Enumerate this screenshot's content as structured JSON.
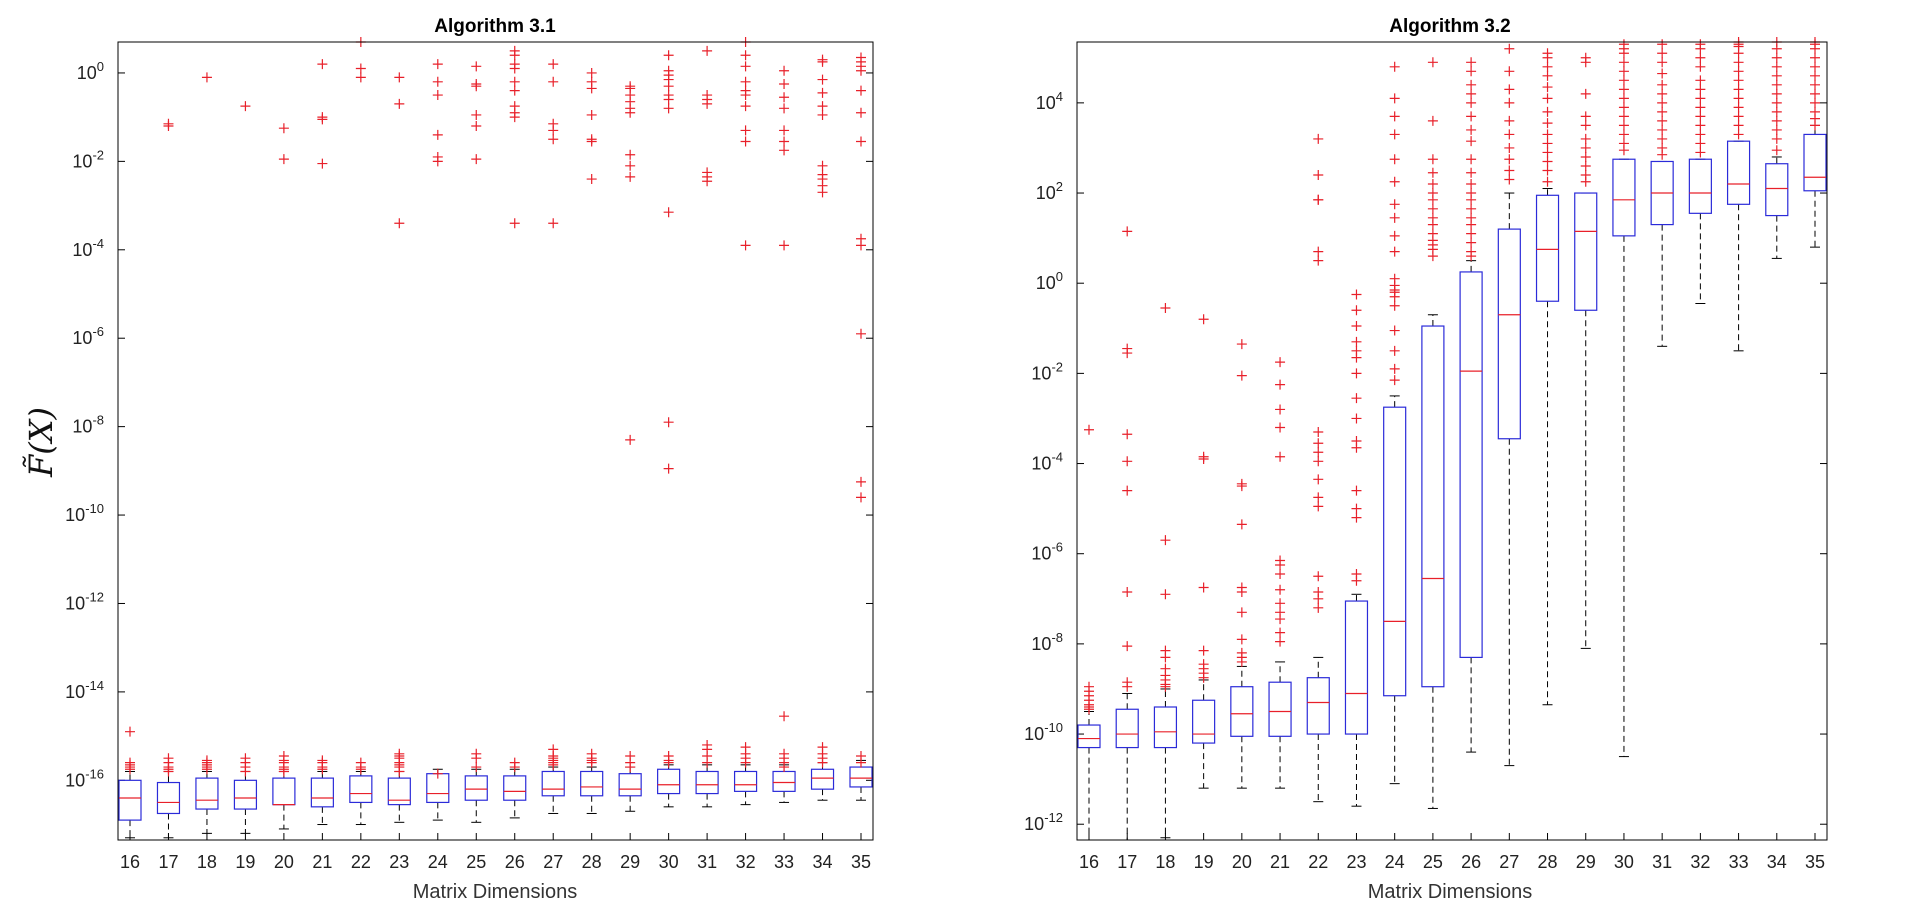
{
  "chart_data": [
    {
      "type": "box",
      "title": "Algorithm 3.1",
      "xlabel": "Matrix Dimensions",
      "ylabel": "F̃(X)",
      "yscale": "log",
      "ylim_log10": [
        -17.35,
        0.7
      ],
      "y_ticks_exp": [
        0,
        -2,
        -4,
        -6,
        -8,
        -10,
        -12,
        -14,
        -16
      ],
      "categories": [
        "16",
        "17",
        "18",
        "19",
        "20",
        "21",
        "22",
        "23",
        "24",
        "25",
        "26",
        "27",
        "28",
        "29",
        "30",
        "31",
        "32",
        "33",
        "34",
        "35"
      ],
      "boxes_log10": [
        {
          "q1": -16.9,
          "median": -16.4,
          "q3": -16.0,
          "wlo": -17.3,
          "whi": -15.8
        },
        {
          "q1": -16.75,
          "median": -16.5,
          "q3": -16.05,
          "wlo": -17.3,
          "whi": -15.8
        },
        {
          "q1": -16.65,
          "median": -16.45,
          "q3": -15.95,
          "wlo": -17.2,
          "whi": -15.8
        },
        {
          "q1": -16.65,
          "median": -16.4,
          "q3": -16.0,
          "wlo": -17.2,
          "whi": -15.8
        },
        {
          "q1": -16.55,
          "median": -16.55,
          "q3": -15.95,
          "wlo": -17.1,
          "whi": -15.8
        },
        {
          "q1": -16.6,
          "median": -16.4,
          "q3": -15.95,
          "wlo": -17.0,
          "whi": -15.8
        },
        {
          "q1": -16.5,
          "median": -16.3,
          "q3": -15.9,
          "wlo": -17.0,
          "whi": -15.8
        },
        {
          "q1": -16.55,
          "median": -16.45,
          "q3": -15.95,
          "wlo": -16.95,
          "whi": -15.8
        },
        {
          "q1": -16.5,
          "median": -16.3,
          "q3": -15.85,
          "wlo": -16.9,
          "whi": -15.75
        },
        {
          "q1": -16.45,
          "median": -16.2,
          "q3": -15.9,
          "wlo": -16.95,
          "whi": -15.75
        },
        {
          "q1": -16.45,
          "median": -16.25,
          "q3": -15.9,
          "wlo": -16.85,
          "whi": -15.75
        },
        {
          "q1": -16.35,
          "median": -16.2,
          "q3": -15.8,
          "wlo": -16.75,
          "whi": -15.7
        },
        {
          "q1": -16.35,
          "median": -16.15,
          "q3": -15.8,
          "wlo": -16.75,
          "whi": -15.7
        },
        {
          "q1": -16.35,
          "median": -16.2,
          "q3": -15.85,
          "wlo": -16.7,
          "whi": -15.7
        },
        {
          "q1": -16.3,
          "median": -16.1,
          "q3": -15.75,
          "wlo": -16.6,
          "whi": -15.65
        },
        {
          "q1": -16.3,
          "median": -16.1,
          "q3": -15.8,
          "wlo": -16.6,
          "whi": -15.65
        },
        {
          "q1": -16.25,
          "median": -16.1,
          "q3": -15.8,
          "wlo": -16.55,
          "whi": -15.65
        },
        {
          "q1": -16.25,
          "median": -16.05,
          "q3": -15.8,
          "wlo": -16.5,
          "whi": -15.65
        },
        {
          "q1": -16.2,
          "median": -15.95,
          "q3": -15.75,
          "wlo": -16.45,
          "whi": -15.6
        },
        {
          "q1": -16.15,
          "median": -15.95,
          "q3": -15.7,
          "wlo": -16.45,
          "whi": -15.55
        }
      ],
      "outliers_log10": [
        [
          -14.9,
          -15.6,
          -15.65,
          -15.7,
          -15.75
        ],
        [
          -1.15,
          -1.2,
          -15.5,
          -15.6,
          -15.7,
          -15.75,
          -15.8
        ],
        [
          -0.1,
          -15.55,
          -15.6,
          -15.65,
          -15.7,
          -15.75
        ],
        [
          -0.75,
          -15.5,
          -15.6,
          -15.7,
          -15.8
        ],
        [
          -1.25,
          -1.95,
          -15.45,
          -15.55,
          -15.6,
          -15.7,
          -15.75,
          -15.8
        ],
        [
          0.2,
          -1.0,
          -1.05,
          -2.05,
          -15.55,
          -15.6,
          -15.7,
          -15.75
        ],
        [
          0.7,
          0.1,
          -0.1,
          -15.6,
          -15.7,
          -15.75
        ],
        [
          -0.1,
          -0.7,
          -3.4,
          -15.4,
          -15.45,
          -15.5,
          -15.6,
          -15.65,
          -15.7,
          -15.8
        ],
        [
          0.2,
          -0.2,
          -0.5,
          -1.4,
          -1.9,
          -2.0,
          -15.85
        ],
        [
          0.15,
          -0.25,
          -0.3,
          -0.95,
          -1.2,
          -1.95,
          -15.4,
          -15.5,
          -15.7
        ],
        [
          0.5,
          0.4,
          0.2,
          0.1,
          -0.2,
          -0.4,
          -0.75,
          -0.9,
          -1.0,
          -3.4,
          -15.6,
          -15.7
        ],
        [
          0.2,
          -0.2,
          -1.15,
          -1.3,
          -1.5,
          -3.4,
          -15.3,
          -15.45,
          -15.5,
          -15.55,
          -15.6,
          -15.65
        ],
        [
          0.0,
          -0.2,
          -0.35,
          -0.95,
          -1.5,
          -1.55,
          -2.4,
          -15.4,
          -15.5,
          -15.55,
          -15.6
        ],
        [
          -0.3,
          -0.35,
          -0.5,
          -0.65,
          -0.8,
          -0.9,
          -1.85,
          -2.1,
          -2.35,
          -8.3,
          -15.45,
          -15.6,
          -15.7
        ],
        [
          0.4,
          0.05,
          -0.05,
          -0.15,
          -0.3,
          -0.5,
          -0.6,
          -0.8,
          -3.15,
          -7.9,
          -8.95,
          -15.45,
          -15.55,
          -15.6
        ],
        [
          0.5,
          -0.5,
          -0.6,
          -0.7,
          -2.25,
          -2.35,
          -2.45,
          -15.2,
          -15.3,
          -15.45,
          -15.6
        ],
        [
          0.7,
          0.4,
          0.15,
          -0.2,
          -0.4,
          -0.5,
          -0.75,
          -1.3,
          -1.55,
          -3.9,
          -15.25,
          -15.4,
          -15.5,
          -15.6
        ],
        [
          0.05,
          -0.25,
          -0.55,
          -0.8,
          -1.3,
          -1.55,
          -1.75,
          -3.9,
          -14.55,
          -15.4,
          -15.5,
          -15.6,
          -15.7
        ],
        [
          0.3,
          0.25,
          -0.15,
          -0.45,
          -0.75,
          -0.95,
          -2.1,
          -2.3,
          -2.4,
          -2.55,
          -2.7,
          -15.25,
          -15.4,
          -15.5,
          -15.6
        ],
        [
          0.35,
          0.25,
          0.15,
          0.05,
          -0.4,
          -0.9,
          -1.55,
          -3.75,
          -3.9,
          -5.9,
          -9.25,
          -9.6,
          -15.45,
          -15.6
        ]
      ]
    },
    {
      "type": "box",
      "title": "Algorithm 3.2",
      "xlabel": "Matrix Dimensions",
      "yscale": "log",
      "ylim_log10": [
        -12.35,
        5.35
      ],
      "y_ticks_exp": [
        4,
        2,
        0,
        -2,
        -4,
        -6,
        -8,
        -10,
        -12
      ],
      "categories": [
        "16",
        "17",
        "18",
        "19",
        "20",
        "21",
        "22",
        "23",
        "24",
        "25",
        "26",
        "27",
        "28",
        "29",
        "30",
        "31",
        "32",
        "33",
        "34",
        "35"
      ],
      "boxes_log10": [
        {
          "q1": -10.3,
          "median": -10.1,
          "q3": -9.8,
          "wlo": -12.35,
          "whi": -9.5
        },
        {
          "q1": -10.3,
          "median": -10.0,
          "q3": -9.45,
          "wlo": -12.35,
          "whi": -9.1
        },
        {
          "q1": -10.3,
          "median": -9.95,
          "q3": -9.4,
          "wlo": -12.3,
          "whi": -9.0
        },
        {
          "q1": -10.2,
          "median": -10.0,
          "q3": -9.25,
          "wlo": -11.2,
          "whi": -8.8
        },
        {
          "q1": -10.05,
          "median": -9.55,
          "q3": -8.95,
          "wlo": -11.2,
          "whi": -8.5
        },
        {
          "q1": -10.05,
          "median": -9.5,
          "q3": -8.85,
          "wlo": -11.2,
          "whi": -8.4
        },
        {
          "q1": -10.0,
          "median": -9.3,
          "q3": -8.75,
          "wlo": -11.5,
          "whi": -8.3
        },
        {
          "q1": -10.0,
          "median": -9.1,
          "q3": -7.05,
          "wlo": -11.6,
          "whi": -6.9
        },
        {
          "q1": -9.15,
          "median": -7.5,
          "q3": -2.75,
          "wlo": -11.1,
          "whi": -2.5
        },
        {
          "q1": -8.95,
          "median": -6.55,
          "q3": -0.95,
          "wlo": -11.65,
          "whi": -0.7
        },
        {
          "q1": -8.3,
          "median": -1.95,
          "q3": 0.25,
          "wlo": -10.4,
          "whi": 0.5
        },
        {
          "q1": -3.45,
          "median": -0.7,
          "q3": 1.2,
          "wlo": -10.7,
          "whi": 2.0
        },
        {
          "q1": -0.4,
          "median": 0.75,
          "q3": 1.95,
          "wlo": -9.35,
          "whi": 2.1
        },
        {
          "q1": -0.6,
          "median": 1.15,
          "q3": 2.0,
          "wlo": -8.1,
          "whi": 2.0
        },
        {
          "q1": 1.05,
          "median": 1.85,
          "q3": 2.75,
          "wlo": -10.5,
          "whi": 2.75
        },
        {
          "q1": 1.3,
          "median": 2.0,
          "q3": 2.7,
          "wlo": -1.4,
          "whi": 2.7
        },
        {
          "q1": 1.55,
          "median": 2.0,
          "q3": 2.75,
          "wlo": -0.45,
          "whi": 2.75
        },
        {
          "q1": 1.75,
          "median": 2.2,
          "q3": 3.15,
          "wlo": -1.5,
          "whi": 3.15
        },
        {
          "q1": 1.5,
          "median": 2.1,
          "q3": 2.65,
          "wlo": 0.55,
          "whi": 2.8
        },
        {
          "q1": 2.05,
          "median": 2.35,
          "q3": 3.3,
          "wlo": 0.8,
          "whi": 3.5
        }
      ],
      "outliers_log10": [
        [
          -3.25,
          -8.95,
          -9.05,
          -9.15,
          -9.25,
          -9.35,
          -9.4,
          -9.45
        ],
        [
          1.15,
          -1.45,
          -1.55,
          -3.35,
          -3.95,
          -4.6,
          -6.85,
          -8.05,
          -8.85,
          -8.95
        ],
        [
          -0.55,
          -5.7,
          -6.9,
          -8.15,
          -8.3,
          -8.55,
          -8.7,
          -8.8,
          -8.9,
          -8.95
        ],
        [
          -0.8,
          -3.85,
          -3.9,
          -6.75,
          -8.15,
          -8.45,
          -8.55,
          -8.65,
          -8.75
        ],
        [
          -1.35,
          -2.05,
          -4.45,
          -4.5,
          -5.35,
          -6.75,
          -6.85,
          -7.3,
          -7.9,
          -8.2,
          -8.3,
          -8.4
        ],
        [
          -1.75,
          -2.25,
          -2.8,
          -3.2,
          -3.85,
          -6.15,
          -6.25,
          -6.45,
          -6.8,
          -7.1,
          -7.3,
          -7.45,
          -7.75,
          -7.95
        ],
        [
          3.2,
          2.4,
          1.85,
          1.85,
          0.7,
          0.5,
          -3.3,
          -3.55,
          -3.75,
          -3.95,
          -4.35,
          -4.75,
          -4.95,
          -6.5,
          -6.85,
          -7.0,
          -7.2
        ],
        [
          -0.25,
          -0.6,
          -0.95,
          -1.3,
          -1.5,
          -1.65,
          -2.0,
          -2.55,
          -3.0,
          -3.5,
          -3.65,
          -4.6,
          -5.0,
          -5.2,
          -6.45,
          -6.6
        ],
        [
          4.8,
          4.1,
          3.7,
          3.3,
          2.75,
          2.25,
          1.75,
          1.45,
          1.05,
          0.7,
          0.1,
          -0.05,
          -0.15,
          -0.2,
          -0.3,
          -0.5,
          -1.05,
          -1.5,
          -1.9,
          -2.15
        ],
        [
          4.9,
          3.6,
          2.75,
          2.45,
          2.2,
          2.0,
          1.85,
          1.65,
          1.45,
          1.3,
          1.1,
          0.95,
          0.85,
          0.75,
          0.6
        ],
        [
          4.9,
          4.7,
          4.4,
          4.2,
          4.0,
          3.7,
          3.4,
          3.15,
          2.75,
          2.45,
          2.2,
          2.0,
          1.85,
          1.65,
          1.45,
          1.3,
          1.1,
          0.9,
          0.7,
          0.6
        ],
        [
          5.2,
          4.7,
          4.3,
          4.0,
          3.6,
          3.3,
          3.0,
          2.75,
          2.5,
          2.3
        ],
        [
          5.1,
          5.0,
          4.8,
          4.6,
          4.35,
          4.1,
          3.8,
          3.55,
          3.3,
          3.1,
          2.9,
          2.7,
          2.5,
          2.25
        ],
        [
          5.0,
          4.9,
          4.2,
          3.7,
          3.5,
          3.2,
          3.0,
          2.8,
          2.6,
          2.4,
          2.25
        ],
        [
          5.3,
          5.2,
          5.1,
          4.9,
          4.7,
          4.5,
          4.3,
          4.1,
          3.9,
          3.7,
          3.5,
          3.3,
          3.1,
          2.95
        ],
        [
          5.3,
          5.1,
          4.9,
          4.65,
          4.4,
          4.2,
          4.0,
          3.8,
          3.6,
          3.4,
          3.2,
          3.0,
          2.85
        ],
        [
          5.3,
          5.2,
          5.0,
          4.8,
          4.5,
          4.3,
          4.1,
          3.9,
          3.7,
          3.5,
          3.3,
          3.1,
          2.9
        ],
        [
          5.35,
          5.3,
          5.25,
          5.1,
          4.9,
          4.7,
          4.5,
          4.3,
          4.1,
          3.9,
          3.7,
          3.5,
          3.3
        ],
        [
          5.35,
          5.2,
          5.0,
          4.8,
          4.6,
          4.4,
          4.2,
          4.0,
          3.8,
          3.6,
          3.4,
          3.2,
          2.95
        ],
        [
          5.35,
          5.3,
          5.2,
          5.0,
          4.8,
          4.6,
          4.4,
          4.2,
          4.0,
          3.8,
          3.65,
          3.5
        ]
      ]
    }
  ]
}
